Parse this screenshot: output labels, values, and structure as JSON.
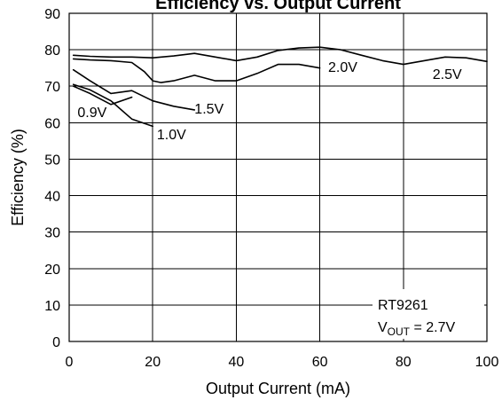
{
  "chart_data": {
    "type": "line",
    "title": "Efficiency vs. Output Current",
    "xlabel": "Output Current (mA)",
    "ylabel": "Efficiency (%)",
    "xlim": [
      0,
      100
    ],
    "ylim": [
      0,
      90
    ],
    "xticks": [
      0,
      20,
      40,
      60,
      80,
      100
    ],
    "yticks": [
      0,
      10,
      20,
      30,
      40,
      50,
      60,
      70,
      80,
      90
    ],
    "grid": true,
    "series": [
      {
        "name": "2.5V",
        "points": [
          [
            1,
            78.5
          ],
          [
            5,
            78.2
          ],
          [
            10,
            78.0
          ],
          [
            15,
            78.0
          ],
          [
            20,
            77.8
          ],
          [
            25,
            78.3
          ],
          [
            30,
            79.0
          ],
          [
            35,
            78.0
          ],
          [
            40,
            77.0
          ],
          [
            45,
            78.0
          ],
          [
            50,
            79.8
          ],
          [
            55,
            80.5
          ],
          [
            60,
            80.7
          ],
          [
            65,
            80.0
          ],
          [
            70,
            78.5
          ],
          [
            75,
            77.0
          ],
          [
            80,
            76.0
          ],
          [
            85,
            77.0
          ],
          [
            90,
            78.0
          ],
          [
            95,
            77.8
          ],
          [
            100,
            76.8
          ]
        ]
      },
      {
        "name": "2.0V",
        "points": [
          [
            1,
            77.5
          ],
          [
            5,
            77.2
          ],
          [
            10,
            77.0
          ],
          [
            15,
            76.5
          ],
          [
            18,
            74.0
          ],
          [
            20,
            71.5
          ],
          [
            22,
            71.0
          ],
          [
            25,
            71.5
          ],
          [
            30,
            73.0
          ],
          [
            35,
            71.5
          ],
          [
            40,
            71.5
          ],
          [
            45,
            73.5
          ],
          [
            50,
            76.0
          ],
          [
            55,
            76.0
          ],
          [
            60,
            75.0
          ]
        ]
      },
      {
        "name": "1.5V",
        "points": [
          [
            1,
            74.5
          ],
          [
            5,
            71.5
          ],
          [
            10,
            68.0
          ],
          [
            15,
            68.8
          ],
          [
            20,
            66.0
          ],
          [
            25,
            64.5
          ],
          [
            30,
            63.5
          ]
        ]
      },
      {
        "name": "1.0V",
        "points": [
          [
            1,
            70.5
          ],
          [
            5,
            69.0
          ],
          [
            10,
            66.0
          ],
          [
            15,
            61.0
          ],
          [
            20,
            59.0
          ]
        ]
      },
      {
        "name": "0.9V",
        "points": [
          [
            1,
            70.0
          ],
          [
            5,
            68.0
          ],
          [
            10,
            65.0
          ],
          [
            15,
            67.0
          ]
        ]
      }
    ],
    "annotation": {
      "line1": "RT9261",
      "line2_prefix": "V",
      "line2_sub": "OUT",
      "line2_suffix": " = 2.7V"
    }
  }
}
